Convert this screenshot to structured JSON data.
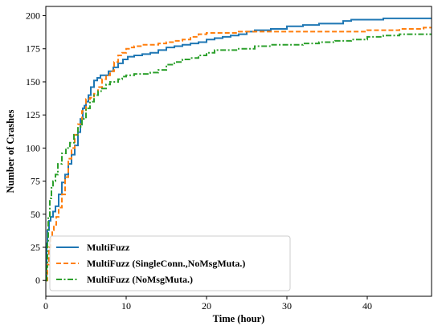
{
  "chart_data": {
    "type": "line",
    "title": "",
    "xlabel": "Time (hour)",
    "ylabel": "Number of Crashes",
    "xlim": [
      0,
      48
    ],
    "ylim": [
      -12,
      207
    ],
    "xticks": [
      0,
      10,
      20,
      30,
      40
    ],
    "yticks": [
      0,
      25,
      50,
      75,
      100,
      125,
      150,
      175,
      200
    ],
    "grid": false,
    "legend_position": "lower-left",
    "series": [
      {
        "name": "MultiFuzz",
        "color": "#1f77b4",
        "style": "solid",
        "x": [
          0,
          0.1,
          0.2,
          0.4,
          0.6,
          0.9,
          1.2,
          1.6,
          2.0,
          2.4,
          2.8,
          3.2,
          3.6,
          4.0,
          4.3,
          4.6,
          4.8,
          5.0,
          5.3,
          5.6,
          6.0,
          6.4,
          6.8,
          7.2,
          7.8,
          8.4,
          9.0,
          9.6,
          10.2,
          11.0,
          12.0,
          13.0,
          14.0,
          15.0,
          16.0,
          17.0,
          18.0,
          19.0,
          20.0,
          21.0,
          22.0,
          23.0,
          24.0,
          25.0,
          26.0,
          28.0,
          30.0,
          32.0,
          34.0,
          36.0,
          37.0,
          38.0,
          40.0,
          42.0,
          44.0,
          46.0,
          48.0
        ],
        "values": [
          0,
          28,
          38,
          45,
          48,
          52,
          56,
          65,
          74,
          80,
          88,
          95,
          102,
          112,
          122,
          130,
          132,
          135,
          140,
          146,
          151,
          153,
          155,
          155,
          158,
          161,
          164,
          167,
          169,
          170,
          171,
          172,
          174,
          176,
          177,
          178,
          179,
          180,
          182,
          183,
          184,
          185,
          186,
          188,
          189,
          190,
          192,
          193,
          194,
          194,
          196,
          197,
          197,
          198,
          198,
          198,
          198
        ]
      },
      {
        "name": "MultiFuzz (SingleConn.,NoMsgMuta.)",
        "color": "#ff7f0e",
        "style": "dashed",
        "x": [
          0,
          0.2,
          0.4,
          0.6,
          0.8,
          1.0,
          1.3,
          1.6,
          2.0,
          2.4,
          2.8,
          3.2,
          3.6,
          4.0,
          4.5,
          5.0,
          5.5,
          6.0,
          6.5,
          7.0,
          7.5,
          8.0,
          8.5,
          9.0,
          9.5,
          10.0,
          10.5,
          11.0,
          12.0,
          13.0,
          14.0,
          15.0,
          16.0,
          17.0,
          18.0,
          19.0,
          20.0,
          22.0,
          24.0,
          26.0,
          28.0,
          30.0,
          32.0,
          34.0,
          36.0,
          38.0,
          40.0,
          42.0,
          44.0,
          46.0,
          47.0,
          48.0
        ],
        "values": [
          0,
          12,
          25,
          32,
          38,
          42,
          48,
          55,
          65,
          78,
          92,
          100,
          110,
          118,
          128,
          137,
          138,
          141,
          146,
          152,
          155,
          158,
          165,
          170,
          172,
          175,
          176,
          177,
          178,
          178,
          179,
          180,
          181,
          182,
          184,
          186,
          187,
          187,
          188,
          188,
          188,
          188,
          188,
          188,
          188,
          188,
          189,
          189,
          190,
          190,
          191,
          191
        ]
      },
      {
        "name": "MultiFuzz (NoMsgMuta.)",
        "color": "#2ca02c",
        "style": "dashdot",
        "x": [
          0,
          0.1,
          0.2,
          0.3,
          0.5,
          0.7,
          0.9,
          1.2,
          1.5,
          2.0,
          2.5,
          3.0,
          3.5,
          4.0,
          4.5,
          5.0,
          5.5,
          6.0,
          6.5,
          7.0,
          7.5,
          8.0,
          8.5,
          9.0,
          9.5,
          10.0,
          11.0,
          12.0,
          13.0,
          14.0,
          15.0,
          16.0,
          17.0,
          18.0,
          19.0,
          20.0,
          21.0,
          22.0,
          24.0,
          26.0,
          28.0,
          30.0,
          32.0,
          34.0,
          36.0,
          38.0,
          40.0,
          42.0,
          44.0,
          46.0,
          48.0
        ],
        "values": [
          0,
          10,
          30,
          48,
          62,
          70,
          75,
          80,
          88,
          96,
          100,
          104,
          110,
          116,
          122,
          130,
          135,
          140,
          143,
          145,
          148,
          150,
          150,
          152,
          154,
          155,
          156,
          156,
          157,
          159,
          163,
          165,
          167,
          168,
          170,
          172,
          174,
          174,
          175,
          177,
          178,
          178,
          179,
          180,
          181,
          182,
          184,
          185,
          186,
          186,
          186
        ]
      }
    ]
  }
}
